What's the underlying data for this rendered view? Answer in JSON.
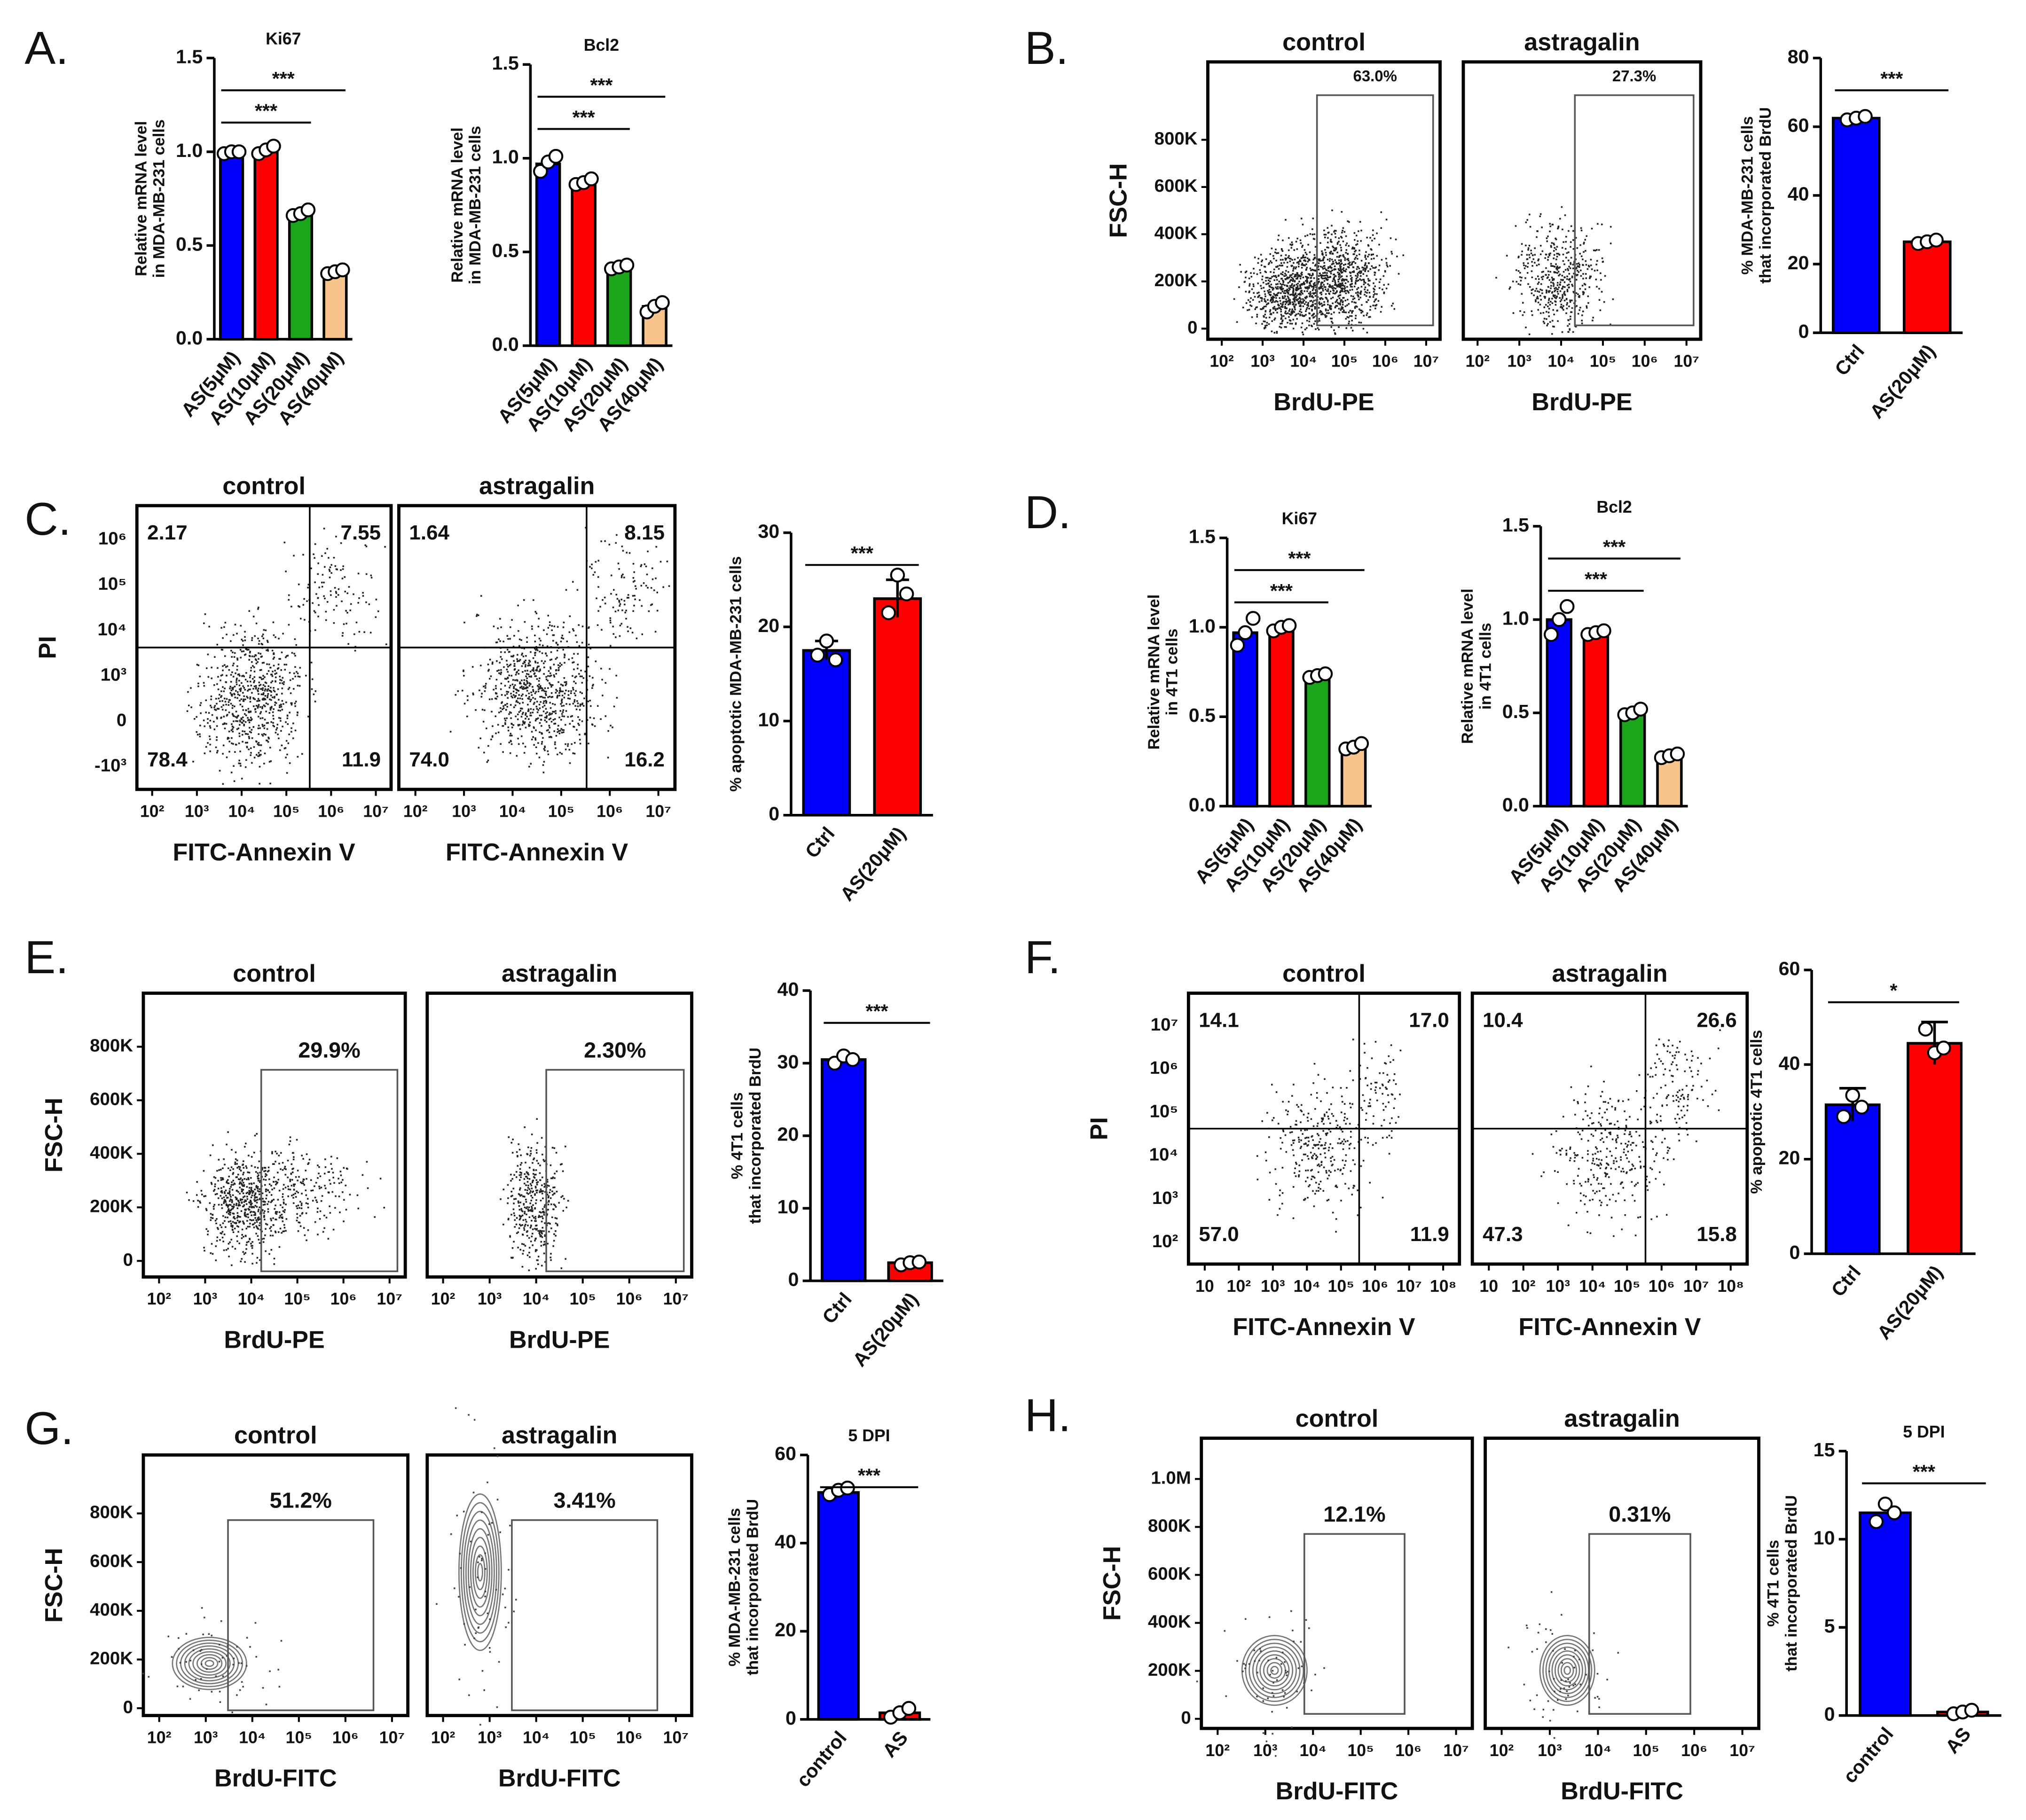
{
  "panel_labels": [
    "A.",
    "B.",
    "C.",
    "D.",
    "E.",
    "F.",
    "G.",
    "H."
  ],
  "chart_data": [
    {
      "type": "bar",
      "title": "Ki67",
      "ylabel": [
        "Relative mRNA level",
        "in MDA-MB-231 cells"
      ],
      "categories": [
        "AS(5μM)",
        "AS(10μM)",
        "AS(20μM)",
        "AS(40μM)"
      ],
      "values": [
        1.0,
        1.01,
        0.67,
        0.36
      ],
      "points": [
        [
          0.99,
          1.0,
          1.0
        ],
        [
          0.99,
          1.01,
          1.03
        ],
        [
          0.66,
          0.67,
          0.69
        ],
        [
          0.35,
          0.36,
          0.37
        ]
      ],
      "colors": [
        "#0000ff",
        "#ff0000",
        "#1aa51a",
        "#f7c48c"
      ],
      "ylim": [
        0,
        1.5
      ],
      "yticks": [
        {
          "value": 0,
          "label": "0.0"
        },
        {
          "value": 0.5,
          "label": "0.5"
        },
        {
          "value": 1,
          "label": "1.0"
        },
        {
          "value": 1.5,
          "label": "1.5"
        }
      ],
      "sig": [
        {
          "text": "***",
          "from": 0,
          "to": 3
        },
        {
          "text": "***",
          "from": 0,
          "to": 2
        }
      ]
    },
    {
      "type": "bar",
      "title": "Bcl2",
      "ylabel": [
        "Relative mRNA level",
        "in MDA-MB-231 cells"
      ],
      "categories": [
        "AS(5μM)",
        "AS(10μM)",
        "AS(20μM)",
        "AS(40μM)"
      ],
      "values": [
        0.97,
        0.87,
        0.42,
        0.21
      ],
      "points": [
        [
          0.93,
          0.98,
          1.01
        ],
        [
          0.86,
          0.87,
          0.89
        ],
        [
          0.41,
          0.42,
          0.43
        ],
        [
          0.18,
          0.21,
          0.23
        ]
      ],
      "colors": [
        "#0000ff",
        "#ff0000",
        "#1aa51a",
        "#f7c48c"
      ],
      "ylim": [
        0,
        1.5
      ],
      "yticks": [
        {
          "value": 0,
          "label": "0.0"
        },
        {
          "value": 0.5,
          "label": "0.5"
        },
        {
          "value": 1,
          "label": "1.0"
        },
        {
          "value": 1.5,
          "label": "1.5"
        }
      ],
      "sig": [
        {
          "text": "***",
          "from": 0,
          "to": 3
        },
        {
          "text": "***",
          "from": 0,
          "to": 2
        }
      ]
    },
    {
      "type": "flow",
      "title": "control",
      "ylabel": "FSC-H",
      "xlabel": "BrdU-PE",
      "ylim": [
        -45000,
        1130000
      ],
      "yticks": [
        {
          "value": 0,
          "label": "0"
        },
        {
          "value": 200000,
          "label": "200K"
        },
        {
          "value": 400000,
          "label": "400K"
        },
        {
          "value": 600000,
          "label": "600K"
        },
        {
          "value": 800000,
          "label": "800K"
        }
      ],
      "xtick_labels": [
        "10²",
        "10³",
        "10⁴",
        "10⁵",
        "10⁶",
        "10⁷"
      ],
      "gate": 63.0,
      "gate_label": "63.0%"
    },
    {
      "type": "flow",
      "title": "astragalin",
      "xlabel": "BrdU-PE",
      "xtick_labels": [
        "10²",
        "10³",
        "10⁴",
        "10⁵",
        "10⁶",
        "10⁷"
      ],
      "gate": 27.3,
      "gate_label": "27.3%"
    },
    {
      "type": "bar",
      "ylabel": [
        "% MDA-MB-231 cells",
        "that incorporated BrdU"
      ],
      "categories": [
        "Ctrl",
        "AS(20μM)"
      ],
      "values": [
        62.5,
        26.5
      ],
      "points": [
        [
          62,
          62.5,
          63
        ],
        [
          26,
          26.5,
          27
        ]
      ],
      "colors": [
        "#0000ff",
        "#ff0000"
      ],
      "ylim": [
        0,
        80
      ],
      "yticks": [
        0,
        20,
        40,
        60,
        80
      ],
      "sig": [
        {
          "text": "***",
          "from": 0,
          "to": 1
        }
      ]
    },
    {
      "type": "flow",
      "title": "control",
      "ylabel": "PI",
      "xlabel": "FITC-Annexin V",
      "ytick_labels": [
        "-10³",
        "0",
        "10³",
        "10⁴",
        "10⁵",
        "10⁶"
      ],
      "xtick_labels": [
        "10²",
        "10³",
        "10⁴",
        "10⁵",
        "10⁶",
        "10⁷"
      ],
      "quadrants": [
        2.17,
        7.55,
        78.4,
        11.9
      ],
      "quadrant_labels": [
        "2.17",
        "7.55",
        "78.4",
        "11.9"
      ]
    },
    {
      "type": "flow",
      "title": "astragalin",
      "xlabel": "FITC-Annexin V",
      "xtick_labels": [
        "10²",
        "10³",
        "10⁴",
        "10⁵",
        "10⁶",
        "10⁷"
      ],
      "quadrants": [
        1.64,
        8.15,
        74.0,
        16.2
      ],
      "quadrant_labels": [
        "1.64",
        "8.15",
        "74.0",
        "16.2"
      ]
    },
    {
      "type": "bar",
      "ylabel": [
        "% apoptotic MDA-MB-231 cells"
      ],
      "categories": [
        "Ctrl",
        "AS(20μM)"
      ],
      "values": [
        17.5,
        23
      ],
      "errors": [
        1,
        2
      ],
      "points": [
        [
          17,
          18.5,
          16.5
        ],
        [
          21.5,
          25.5,
          23.5
        ]
      ],
      "colors": [
        "#0000ff",
        "#ff0000"
      ],
      "ylim": [
        0,
        30
      ],
      "yticks": [
        0,
        10,
        20,
        30
      ],
      "sig": [
        {
          "text": "***",
          "from": 0,
          "to": 1
        }
      ]
    },
    {
      "type": "bar",
      "title": "Ki67",
      "ylabel": [
        "Relative mRNA level",
        "in 4T1 cells"
      ],
      "categories": [
        "AS(5μM)",
        "AS(10μM)",
        "AS(20μM)",
        "AS(40μM)"
      ],
      "values": [
        0.97,
        1.0,
        0.73,
        0.33
      ],
      "points": [
        [
          0.9,
          0.97,
          1.05
        ],
        [
          0.98,
          1.0,
          1.01
        ],
        [
          0.72,
          0.73,
          0.74
        ],
        [
          0.32,
          0.33,
          0.35
        ]
      ],
      "colors": [
        "#0000ff",
        "#ff0000",
        "#1aa51a",
        "#f7c48c"
      ],
      "ylim": [
        0,
        1.5
      ],
      "yticks": [
        {
          "value": 0,
          "label": "0.0"
        },
        {
          "value": 0.5,
          "label": "0.5"
        },
        {
          "value": 1,
          "label": "1.0"
        },
        {
          "value": 1.5,
          "label": "1.5"
        }
      ],
      "sig": [
        {
          "text": "***",
          "from": 0,
          "to": 3
        },
        {
          "text": "***",
          "from": 0,
          "to": 2
        }
      ]
    },
    {
      "type": "bar",
      "title": "Bcl2",
      "ylabel": [
        "Relative mRNA level",
        "in 4T1 cells"
      ],
      "categories": [
        "AS(5μM)",
        "AS(10μM)",
        "AS(20μM)",
        "AS(40μM)"
      ],
      "values": [
        1.0,
        0.93,
        0.5,
        0.27
      ],
      "points": [
        [
          0.92,
          1.0,
          1.07
        ],
        [
          0.92,
          0.93,
          0.94
        ],
        [
          0.49,
          0.5,
          0.52
        ],
        [
          0.26,
          0.27,
          0.28
        ]
      ],
      "colors": [
        "#0000ff",
        "#ff0000",
        "#1aa51a",
        "#f7c48c"
      ],
      "ylim": [
        0,
        1.5
      ],
      "yticks": [
        {
          "value": 0,
          "label": "0.0"
        },
        {
          "value": 0.5,
          "label": "0.5"
        },
        {
          "value": 1,
          "label": "1.0"
        },
        {
          "value": 1.5,
          "label": "1.5"
        }
      ],
      "sig": [
        {
          "text": "***",
          "from": 0,
          "to": 3
        },
        {
          "text": "***",
          "from": 0,
          "to": 2
        }
      ]
    },
    {
      "type": "flow",
      "title": "control",
      "ylabel": "FSC-H",
      "xlabel": "BrdU-PE",
      "ylim": [
        -60000,
        1000000
      ],
      "yticks": [
        {
          "value": 0,
          "label": "0"
        },
        {
          "value": 200000,
          "label": "200K"
        },
        {
          "value": 400000,
          "label": "400K"
        },
        {
          "value": 600000,
          "label": "600K"
        },
        {
          "value": 800000,
          "label": "800K"
        }
      ],
      "xtick_labels": [
        "10²",
        "10³",
        "10⁴",
        "10⁵",
        "10⁶",
        "10⁷"
      ],
      "gate": 29.9,
      "gate_label": "29.9%"
    },
    {
      "type": "flow",
      "title": "astragalin",
      "xlabel": "BrdU-PE",
      "xtick_labels": [
        "10²",
        "10³",
        "10⁴",
        "10⁵",
        "10⁶",
        "10⁷"
      ],
      "gate": 2.3,
      "gate_label": "2.30%"
    },
    {
      "type": "bar",
      "ylabel": [
        "% 4T1 cells",
        "that incorporated BrdU"
      ],
      "categories": [
        "Ctrl",
        "AS(20μM)"
      ],
      "values": [
        30.5,
        2.5
      ],
      "points": [
        [
          30,
          31,
          30.5
        ],
        [
          2.2,
          2.5,
          2.6
        ]
      ],
      "colors": [
        "#0000ff",
        "#ff0000"
      ],
      "ylim": [
        0,
        40
      ],
      "yticks": [
        0,
        10,
        20,
        30,
        40
      ],
      "sig": [
        {
          "text": "***",
          "from": 0,
          "to": 1
        }
      ]
    },
    {
      "type": "flow",
      "title": "control",
      "ylabel": "PI",
      "xlabel": "FITC-Annexin V",
      "ytick_labels": [
        "10²",
        "10³",
        "10⁴",
        "10⁵",
        "10⁶",
        "10⁷"
      ],
      "xtick_labels": [
        "10",
        "10²",
        "10³",
        "10⁴",
        "10⁵",
        "10⁶",
        "10⁷",
        "10⁸"
      ],
      "quadrants": [
        14.1,
        17.0,
        57.0,
        11.9
      ],
      "quadrant_labels": [
        "14.1",
        "17.0",
        "57.0",
        "11.9"
      ]
    },
    {
      "type": "flow",
      "title": "astragalin",
      "xlabel": "FITC-Annexin V",
      "xtick_labels": [
        "10",
        "10²",
        "10³",
        "10⁴",
        "10⁵",
        "10⁶",
        "10⁷",
        "10⁸"
      ],
      "quadrants": [
        10.4,
        26.6,
        47.3,
        15.8
      ],
      "quadrant_labels": [
        "10.4",
        "26.6",
        "47.3",
        "15.8"
      ]
    },
    {
      "type": "bar",
      "ylabel": [
        "% apoptotic 4T1 cells"
      ],
      "categories": [
        "Ctrl",
        "AS(20μM)"
      ],
      "values": [
        31.5,
        44.5
      ],
      "errors": [
        3.5,
        4.5
      ],
      "points": [
        [
          29,
          33.5,
          31
        ],
        [
          47.5,
          42.5,
          43.5
        ]
      ],
      "colors": [
        "#0000ff",
        "#ff0000"
      ],
      "ylim": [
        0,
        60
      ],
      "yticks": [
        0,
        20,
        40,
        60
      ],
      "sig": [
        {
          "text": "*",
          "from": 0,
          "to": 1
        }
      ]
    },
    {
      "type": "flow",
      "title": "control",
      "ylabel": "FSC-H",
      "xlabel": "BrdU-FITC",
      "ylim": [
        -30000,
        1040000
      ],
      "yticks": [
        {
          "value": 0,
          "label": "0"
        },
        {
          "value": 200000,
          "label": "200K"
        },
        {
          "value": 400000,
          "label": "400K"
        },
        {
          "value": 600000,
          "label": "600K"
        },
        {
          "value": 800000,
          "label": "800K"
        }
      ],
      "xtick_labels": [
        "10²",
        "10³",
        "10⁴",
        "10⁵",
        "10⁶",
        "10⁷"
      ],
      "gate": 51.2,
      "gate_label": "51.2%"
    },
    {
      "type": "flow",
      "title": "astragalin",
      "xlabel": "BrdU-FITC",
      "xtick_labels": [
        "10²",
        "10³",
        "10⁴",
        "10⁵",
        "10⁶",
        "10⁷"
      ],
      "gate": 3.41,
      "gate_label": "3.41%"
    },
    {
      "type": "bar",
      "title": "5 DPI",
      "ylabel": [
        "% MDA-MB-231 cells",
        "that incorporated BrdU"
      ],
      "categories": [
        "control",
        "AS"
      ],
      "values": [
        51.5,
        1.5
      ],
      "points": [
        [
          51,
          52,
          52.5
        ],
        [
          0.5,
          1.5,
          2.5
        ]
      ],
      "colors": [
        "#0000ff",
        "#ff0000"
      ],
      "ylim": [
        0,
        60
      ],
      "yticks": [
        0,
        20,
        40,
        60
      ],
      "sig": [
        {
          "text": "***",
          "from": 0,
          "to": 1
        }
      ]
    },
    {
      "type": "flow",
      "title": "control",
      "ylabel": "FSC-H",
      "xlabel": "BrdU-FITC",
      "ylim": [
        -40000,
        1170000
      ],
      "yticks": [
        {
          "value": 0,
          "label": "0"
        },
        {
          "value": 200000,
          "label": "200K"
        },
        {
          "value": 400000,
          "label": "400K"
        },
        {
          "value": 600000,
          "label": "600K"
        },
        {
          "value": 800000,
          "label": "800K"
        },
        {
          "value": 1000000,
          "label": "1.0M"
        }
      ],
      "xtick_labels": [
        "10²",
        "10³",
        "10⁴",
        "10⁵",
        "10⁶",
        "10⁷"
      ],
      "gate": 12.1,
      "gate_label": "12.1%"
    },
    {
      "type": "flow",
      "title": "astragalin",
      "xlabel": "BrdU-FITC",
      "xtick_labels": [
        "10²",
        "10³",
        "10⁴",
        "10⁵",
        "10⁶",
        "10⁷"
      ],
      "gate": 0.31,
      "gate_label": "0.31%"
    },
    {
      "type": "bar",
      "title": "5 DPI",
      "ylabel": [
        "% 4T1 cells",
        "that incorporated BrdU"
      ],
      "categories": [
        "control",
        "AS"
      ],
      "values": [
        11.5,
        0.2
      ],
      "points": [
        [
          11,
          12,
          11.5
        ],
        [
          0.1,
          0.2,
          0.3
        ]
      ],
      "colors": [
        "#0000ff",
        "#ff0000"
      ],
      "ylim": [
        0,
        15
      ],
      "yticks": [
        0,
        5,
        10,
        15
      ],
      "sig": [
        {
          "text": "***",
          "from": 0,
          "to": 1
        }
      ]
    }
  ]
}
